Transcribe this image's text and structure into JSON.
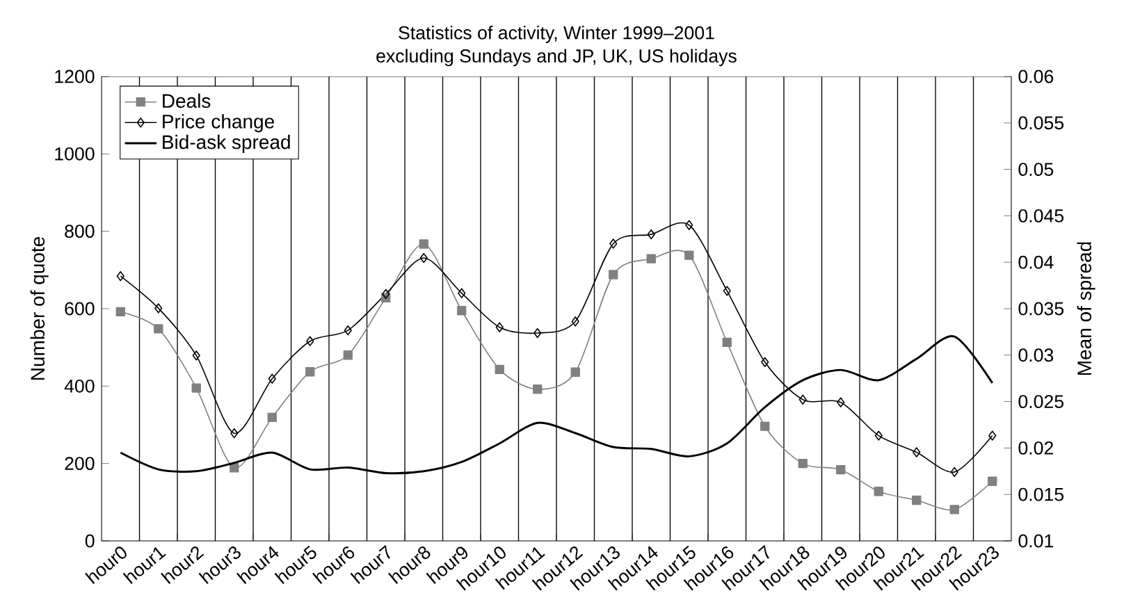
{
  "chart_data": {
    "type": "line",
    "title": "Statistics of activity, Winter 1999–2001",
    "subtitle": "excluding Sundays and JP, UK, US holidays",
    "ylabel": "Number of quote",
    "y2label": "Mean of spread",
    "categories": [
      "hour0",
      "hour1",
      "hour2",
      "hour3",
      "hour4",
      "hour5",
      "hour6",
      "hour7",
      "hour8",
      "hour9",
      "hour10",
      "hour11",
      "hour12",
      "hour13",
      "hour14",
      "hour15",
      "hour16",
      "hour17",
      "hour18",
      "hour19",
      "hour20",
      "hour21",
      "hour22",
      "hour23"
    ],
    "series": [
      {
        "name": "Deals",
        "color": "#808080",
        "marker": "square",
        "values": [
          592,
          548,
          395,
          189,
          319,
          437,
          480,
          628,
          767,
          595,
          443,
          392,
          436,
          688,
          729,
          738,
          513,
          296,
          200,
          184,
          128,
          105,
          81,
          154
        ]
      },
      {
        "name": "Price change",
        "color": "#000000",
        "marker": "diamond",
        "values": [
          684,
          601,
          479,
          278,
          419,
          516,
          544,
          638,
          731,
          640,
          552,
          537,
          567,
          768,
          792,
          816,
          646,
          462,
          365,
          358,
          272,
          229,
          178,
          272
        ]
      },
      {
        "name": "Bid-ask spread",
        "color": "#000000",
        "marker": "none",
        "axis": "y2",
        "values": [
          0.0195,
          0.0177,
          0.0175,
          0.0184,
          0.0195,
          0.0177,
          0.0179,
          0.0173,
          0.0175,
          0.0185,
          0.0205,
          0.0227,
          0.0216,
          0.0201,
          0.0199,
          0.0191,
          0.0205,
          0.0244,
          0.0273,
          0.0284,
          0.0273,
          0.0296,
          0.032,
          0.027
        ]
      }
    ],
    "ylim": [
      0,
      1200
    ],
    "yticks": [
      0,
      200,
      400,
      600,
      800,
      1000,
      1200
    ],
    "y2lim": [
      0.01,
      0.06
    ],
    "y2ticks": [
      0.01,
      0.015,
      0.02,
      0.025,
      0.03,
      0.035,
      0.04,
      0.045,
      0.05,
      0.055,
      0.06
    ],
    "grid": "x",
    "legend": "top left",
    "line_style": "solid"
  }
}
